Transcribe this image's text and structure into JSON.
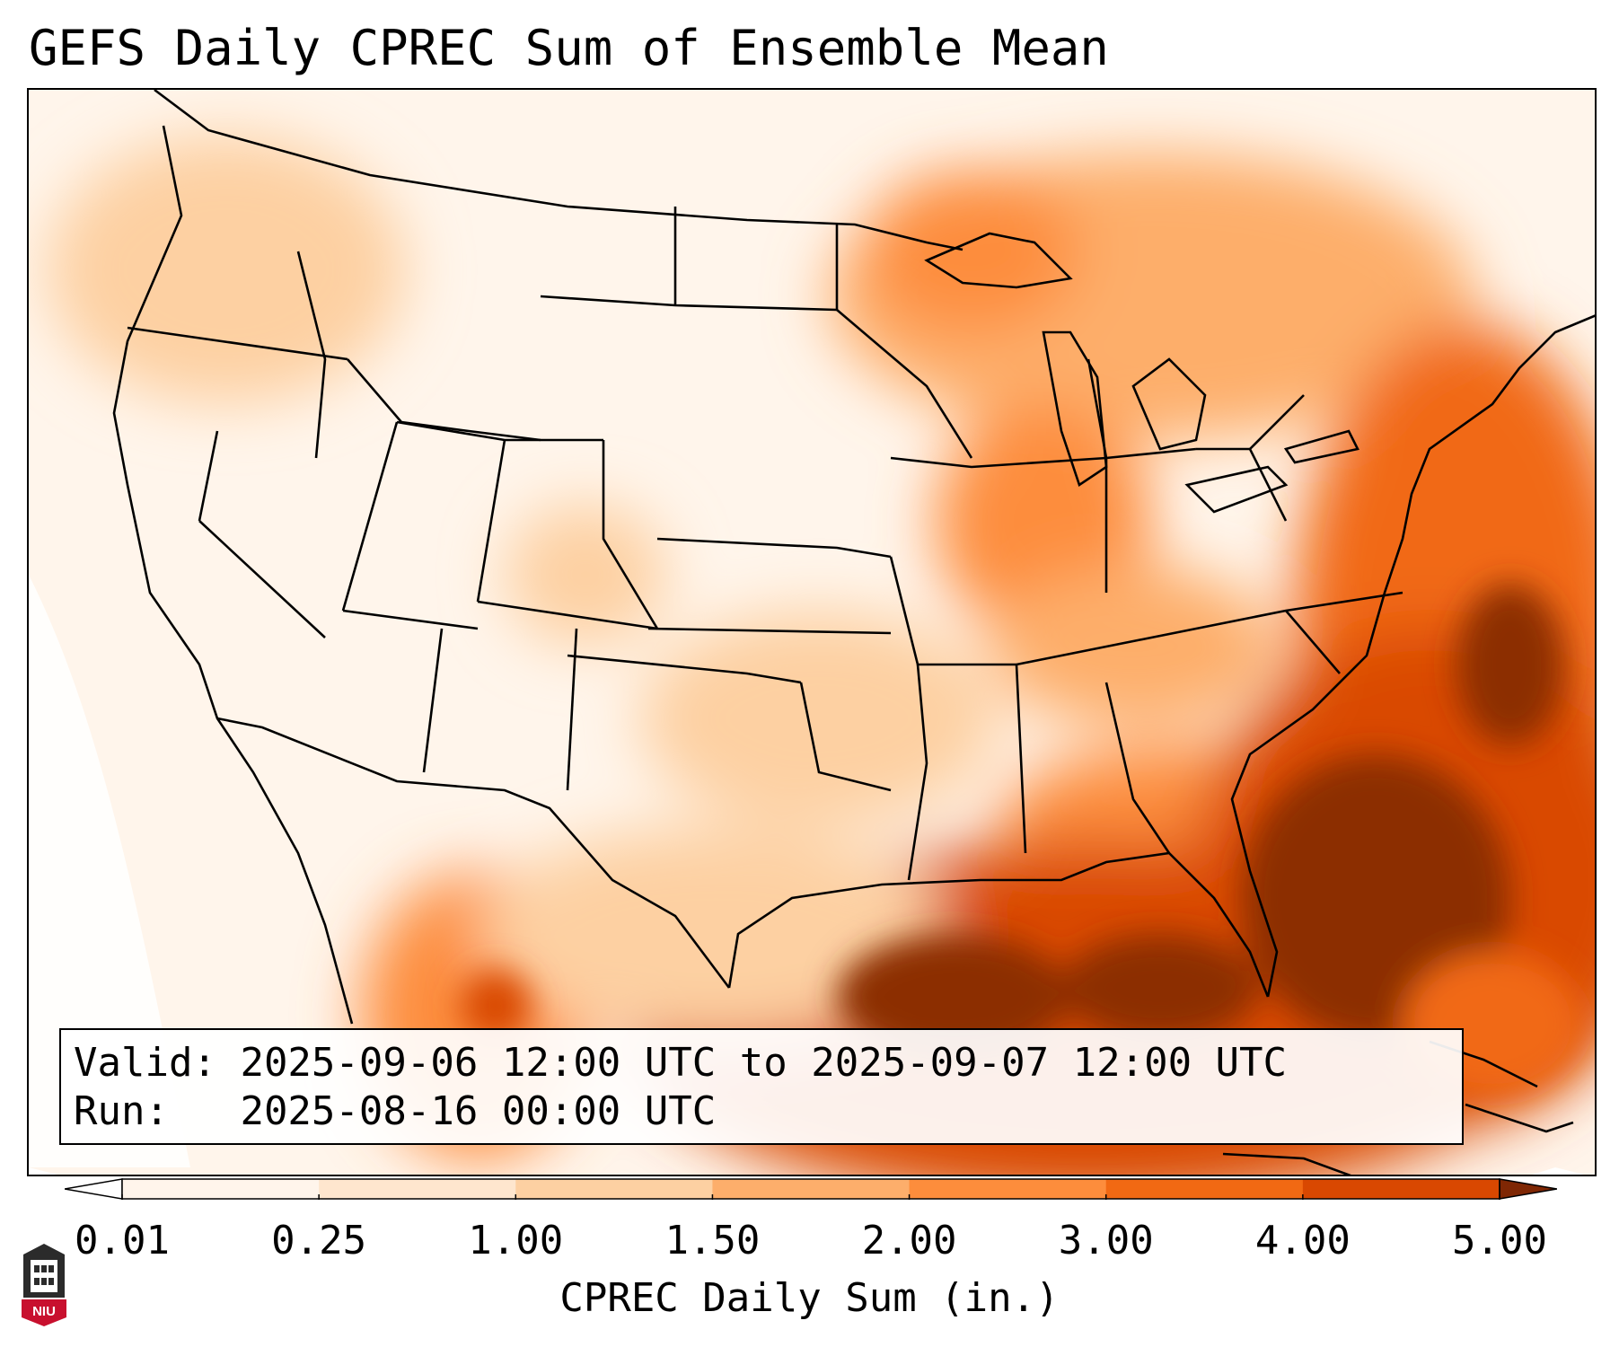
{
  "title": "GEFS Daily CPREC Sum of Ensemble Mean",
  "info": {
    "valid_label": "Valid:",
    "valid_value": "2025-09-06 12:00 UTC to 2025-09-07 12:00 UTC",
    "run_label": "Run:",
    "run_value": "2025-08-16 00:00 UTC"
  },
  "colorbar": {
    "label": "CPREC Daily Sum (in.)",
    "ticks": [
      "0.01",
      "0.25",
      "1.00",
      "1.50",
      "2.00",
      "3.00",
      "4.00",
      "5.00"
    ],
    "colors": [
      "#fff5eb",
      "#fee6ce",
      "#fdd0a2",
      "#fdae6b",
      "#fd8d3c",
      "#f16913",
      "#d94801",
      "#8c2d04"
    ],
    "under_color": "#ffffff",
    "over_color": "#7f2704"
  },
  "map": {
    "projection": "Lambert Conformal, CONUS",
    "features": [
      "state-borders",
      "coastlines",
      "country-borders",
      "great-lakes"
    ]
  },
  "logo": {
    "text": "NIU"
  }
}
